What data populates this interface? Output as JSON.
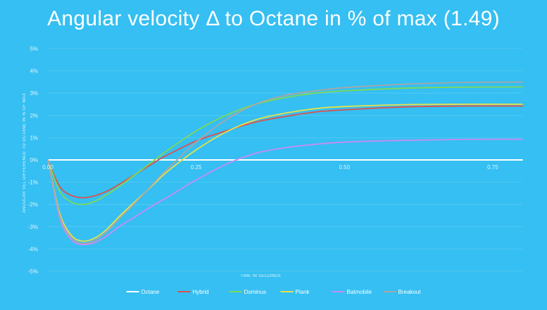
{
  "chart_data": {
    "type": "line",
    "title": "Angular velocity Δ to Octane in % of max (1.49)",
    "xlabel": "TIME IN SECONDS",
    "ylabel": "ANGULAR VEL DIFFERENCE TO OCTANE IN % OF MAX",
    "xlim": [
      0,
      0.8
    ],
    "ylim": [
      -5,
      5
    ],
    "x_ticks": [
      0.0,
      0.25,
      0.5,
      0.75
    ],
    "x_tick_labels": [
      "0.00",
      "0.25",
      "0.50",
      "0.75"
    ],
    "y_ticks": [
      5,
      4,
      3,
      2,
      1,
      0,
      -1,
      -2,
      -3,
      -4,
      -5
    ],
    "y_tick_labels": [
      "5%",
      "4%",
      "3%",
      "2%",
      "1%",
      "0%",
      "-1%",
      "-2%",
      "-3%",
      "-4%",
      "-5%"
    ],
    "grid": true,
    "legend_position": "bottom",
    "series": [
      {
        "name": "Octane",
        "color": "#ffffff",
        "x": [
          0,
          0.1,
          0.2,
          0.3,
          0.4,
          0.5,
          0.6,
          0.7,
          0.8
        ],
        "y": [
          0,
          0,
          0,
          0,
          0,
          0,
          0,
          0,
          0
        ]
      },
      {
        "name": "Hybrid",
        "color": "#d9534f",
        "x": [
          0,
          0.02,
          0.04,
          0.06,
          0.08,
          0.1,
          0.12,
          0.15,
          0.18,
          0.2,
          0.25,
          0.3,
          0.35,
          0.4,
          0.45,
          0.5,
          0.6,
          0.7,
          0.8
        ],
        "y": [
          0,
          -1.2,
          -1.6,
          -1.7,
          -1.6,
          -1.4,
          -1.1,
          -0.6,
          -0.1,
          0.2,
          0.85,
          1.3,
          1.7,
          1.95,
          2.15,
          2.25,
          2.38,
          2.42,
          2.42
        ]
      },
      {
        "name": "Dominus",
        "color": "#7ed957",
        "x": [
          0,
          0.02,
          0.04,
          0.06,
          0.08,
          0.1,
          0.12,
          0.15,
          0.18,
          0.2,
          0.25,
          0.3,
          0.35,
          0.4,
          0.45,
          0.5,
          0.6,
          0.7,
          0.8
        ],
        "y": [
          0,
          -1.4,
          -1.9,
          -2.0,
          -1.85,
          -1.55,
          -1.2,
          -0.6,
          0.0,
          0.4,
          1.3,
          2.0,
          2.5,
          2.8,
          3.0,
          3.1,
          3.22,
          3.27,
          3.28
        ]
      },
      {
        "name": "Plank",
        "color": "#e6e24a",
        "x": [
          0,
          0.02,
          0.04,
          0.06,
          0.08,
          0.1,
          0.12,
          0.15,
          0.18,
          0.2,
          0.25,
          0.3,
          0.35,
          0.4,
          0.45,
          0.5,
          0.6,
          0.7,
          0.8
        ],
        "y": [
          0,
          -2.4,
          -3.4,
          -3.65,
          -3.5,
          -3.1,
          -2.55,
          -1.8,
          -1.05,
          -0.55,
          0.45,
          1.25,
          1.8,
          2.1,
          2.3,
          2.4,
          2.48,
          2.5,
          2.5
        ]
      },
      {
        "name": "Batmobile",
        "color": "#c58df5",
        "x": [
          0,
          0.02,
          0.04,
          0.06,
          0.08,
          0.1,
          0.12,
          0.15,
          0.18,
          0.2,
          0.25,
          0.3,
          0.35,
          0.4,
          0.45,
          0.5,
          0.6,
          0.7,
          0.8
        ],
        "y": [
          0,
          -2.6,
          -3.6,
          -3.8,
          -3.7,
          -3.4,
          -3.0,
          -2.5,
          -2.0,
          -1.7,
          -0.9,
          -0.2,
          0.3,
          0.55,
          0.7,
          0.8,
          0.88,
          0.92,
          0.93
        ]
      },
      {
        "name": "Breakout",
        "color": "#a9a6a6",
        "x": [
          0,
          0.02,
          0.04,
          0.06,
          0.08,
          0.1,
          0.12,
          0.15,
          0.18,
          0.2,
          0.25,
          0.3,
          0.35,
          0.4,
          0.45,
          0.5,
          0.6,
          0.7,
          0.8
        ],
        "y": [
          0,
          -2.5,
          -3.5,
          -3.75,
          -3.6,
          -3.2,
          -2.65,
          -1.85,
          -1.0,
          -0.45,
          0.8,
          1.8,
          2.5,
          2.9,
          3.1,
          3.25,
          3.4,
          3.48,
          3.5
        ]
      }
    ]
  }
}
